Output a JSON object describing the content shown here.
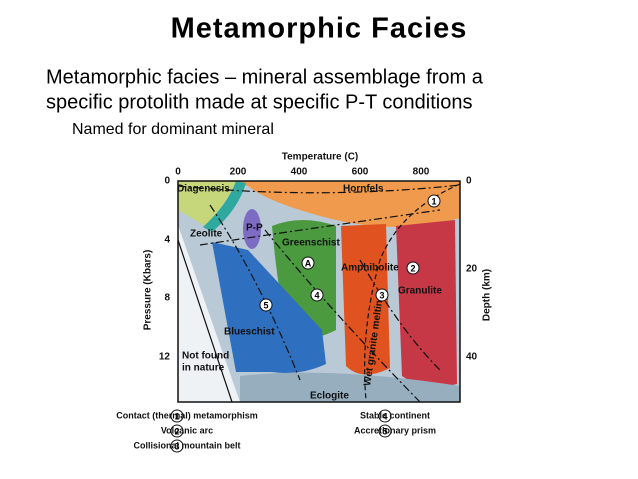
{
  "title": "Metamorphic Facies",
  "bullet_lines": [
    "Metamorphic facies – mineral assemblage from a",
    "specific protolith made at specific P-T conditions"
  ],
  "sub_bullet": "Named for dominant mineral",
  "figure": {
    "top_axis_title": "Temperature (C)",
    "top_ticks": [
      "0",
      "200",
      "400",
      "600",
      "800"
    ],
    "left_axis_title": "Pressure (Kbars)",
    "left_ticks": [
      "0",
      "4",
      "8",
      "12"
    ],
    "right_axis_title": "Depth (km)",
    "right_ticks": [
      "0",
      "20",
      "40"
    ],
    "facies": {
      "diagenesis": "Diagenesis",
      "hornfels": "Hornfels",
      "zeolite": "Zeolite",
      "pp": "P-P",
      "greenschist": "Greenschist",
      "amphibolite": "Amphibolite",
      "granulite": "Granulite",
      "blueschist": "Blueschist",
      "eclogite": "Eclogite"
    },
    "not_found_lines": [
      "Not found",
      "in nature"
    ],
    "melting_label": "Wet granite melting",
    "point_label": "A",
    "path_markers": [
      "1",
      "2",
      "3",
      "4",
      "5"
    ],
    "legend": [
      {
        "number": "1",
        "text": "Contact (thermal) metamorphism"
      },
      {
        "number": "2",
        "text": "Volcanic arc"
      },
      {
        "number": "3",
        "text": "Collisional mountain belt"
      },
      {
        "number": "4",
        "text": "Stable continent"
      },
      {
        "number": "5",
        "text": "Accretionary prism"
      }
    ]
  }
}
